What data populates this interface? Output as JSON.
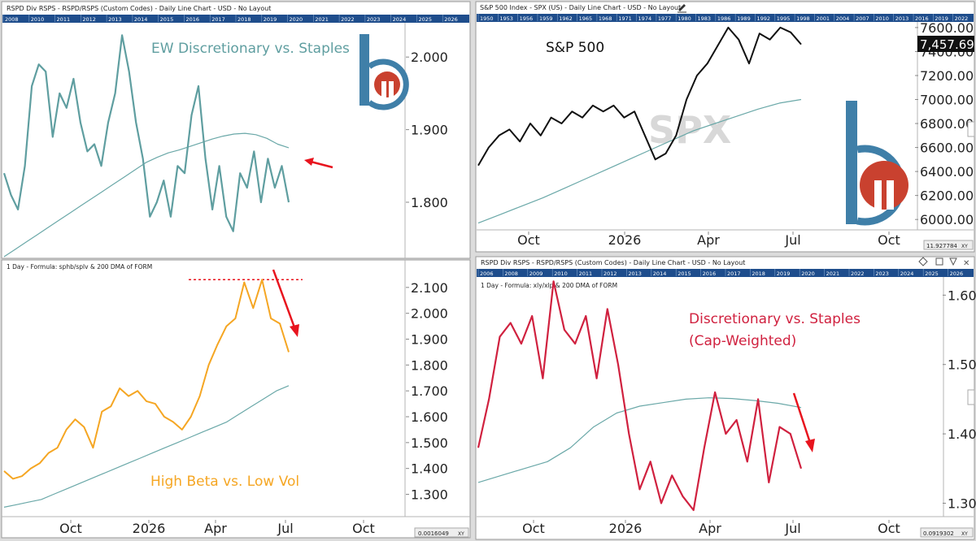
{
  "colors": {
    "teal": "#5f9ea0",
    "ma": "#6aa8a8",
    "orange": "#f5a623",
    "red": "#d0213f",
    "black": "#111111",
    "arrow": "#e8141e",
    "header_band": "#1e4d8c",
    "dotted": "#e8141e",
    "logo_blue": "#3f7fa8",
    "logo_red": "#c9412f"
  },
  "panels": {
    "top_left": {
      "header": "RSPD Div RSPS -  RSPD/RSPS (Custom Codes) - Daily Line Chart - USD - No Layout",
      "years": [
        "2008",
        "2010",
        "2011",
        "2012",
        "2013",
        "2014",
        "2015",
        "2016",
        "2017",
        "2018",
        "2019",
        "2020",
        "2021",
        "2022",
        "2023",
        "2024",
        "2025",
        "2026"
      ],
      "title": "EW Discretionary vs. Staples"
    },
    "bottom_left": {
      "subheader": "1 Day - Formula:  sphb/splv & 200 DMA of FORM",
      "title": "High Beta vs. Low Vol",
      "corner_value": "0.0016049",
      "corner_tag": "XY"
    },
    "top_right": {
      "header": "S&P 500 Index - SPX (US) - Daily Line Chart - USD - No Layout",
      "years": [
        "1950",
        "1953",
        "1956",
        "1959",
        "1962",
        "1965",
        "1968",
        "1971",
        "1974",
        "1977",
        "1980",
        "1983",
        "1986",
        "1989",
        "1992",
        "1995",
        "1998",
        "2001",
        "2004",
        "2007",
        "2010",
        "2013",
        "2016",
        "2019",
        "2022"
      ],
      "title": "S&P 500",
      "watermark": "SPX",
      "last_value": "7,457.69",
      "corner_value": "11.927784",
      "corner_tag": "XY"
    },
    "bottom_right": {
      "header": "RSPD Div RSPS -  RSPD/RSPS (Custom Codes) - Daily Line Chart - USD - No Layout",
      "years": [
        "2006",
        "2008",
        "2009",
        "2010",
        "2011",
        "2012",
        "2013",
        "2014",
        "2015",
        "2016",
        "2017",
        "2018",
        "2019",
        "2020",
        "2021",
        "2022",
        "2023",
        "2024",
        "2025",
        "2026"
      ],
      "subheader": "1 Day - Formula:  xly/xlp & 200 DMA of FORM",
      "title_line1": "Discretionary vs. Staples",
      "title_line2": "(Cap-Weighted)",
      "corner_value": "0.0919302",
      "corner_tag": "XY"
    }
  },
  "chart_data": [
    {
      "type": "line",
      "title": "EW Discretionary vs. Staples",
      "x_tick_labels": [
        "Oct",
        "2026",
        "Apr",
        "Jul",
        "Oct"
      ],
      "y_tick_labels": [
        "1.800",
        "1.900",
        "2.000"
      ],
      "ylim": [
        1.725,
        2.045
      ],
      "series": [
        {
          "values": [
            1.84,
            1.81,
            1.79,
            1.85,
            1.96,
            1.99,
            1.98,
            1.89,
            1.95,
            1.93,
            1.97,
            1.91,
            1.87,
            1.88,
            1.85,
            1.91,
            1.95,
            2.03,
            1.98,
            1.91,
            1.86,
            1.78,
            1.8,
            1.83,
            1.78,
            1.85,
            1.84,
            1.92,
            1.96,
            1.86,
            1.79,
            1.85,
            1.78,
            1.76,
            1.84,
            1.82,
            1.87,
            1.8,
            1.86,
            1.82,
            1.85,
            1.8
          ]
        },
        {
          "values": [
            1.725,
            1.735,
            1.745,
            1.755,
            1.765,
            1.775,
            1.785,
            1.795,
            1.805,
            1.815,
            1.825,
            1.835,
            1.845,
            1.855,
            1.862,
            1.868,
            1.872,
            1.877,
            1.882,
            1.887,
            1.891,
            1.894,
            1.895,
            1.893,
            1.888,
            1.88,
            1.875
          ]
        }
      ]
    },
    {
      "type": "line",
      "title": "High Beta vs. Low Vol",
      "x_tick_labels": [
        "Oct",
        "2026",
        "Apr",
        "Jul",
        "Oct"
      ],
      "y_tick_labels": [
        "1.300",
        "1.400",
        "1.500",
        "1.600",
        "1.700",
        "1.800",
        "1.900",
        "2.000",
        "2.100"
      ],
      "ylim": [
        1.22,
        2.2
      ],
      "reference_level": 2.13,
      "series": [
        {
          "values": [
            1.39,
            1.36,
            1.37,
            1.4,
            1.42,
            1.46,
            1.48,
            1.55,
            1.59,
            1.56,
            1.48,
            1.62,
            1.64,
            1.71,
            1.68,
            1.7,
            1.66,
            1.65,
            1.6,
            1.58,
            1.55,
            1.6,
            1.68,
            1.8,
            1.88,
            1.95,
            1.98,
            2.12,
            2.02,
            2.13,
            1.98,
            1.96,
            1.85
          ]
        },
        {
          "values": [
            1.25,
            1.26,
            1.27,
            1.28,
            1.3,
            1.32,
            1.34,
            1.36,
            1.38,
            1.4,
            1.42,
            1.44,
            1.46,
            1.48,
            1.5,
            1.52,
            1.54,
            1.56,
            1.58,
            1.61,
            1.64,
            1.67,
            1.7,
            1.72
          ]
        }
      ]
    },
    {
      "type": "line",
      "title": "S&P 500",
      "x_tick_labels": [
        "Oct",
        "2026",
        "Apr",
        "Jul",
        "Oct"
      ],
      "y_tick_labels": [
        "6000.00",
        "6200.00",
        "6400.00",
        "6600.00",
        "6800.00",
        "7000.00",
        "7200.00",
        "7400.00",
        "7600.00"
      ],
      "ylim": [
        5920,
        7640
      ],
      "last_value": 7457.69,
      "series": [
        {
          "values": [
            6450,
            6600,
            6700,
            6750,
            6650,
            6800,
            6700,
            6850,
            6800,
            6900,
            6850,
            6950,
            6900,
            6950,
            6850,
            6900,
            6700,
            6500,
            6550,
            6700,
            7000,
            7200,
            7300,
            7450,
            7600,
            7500,
            7300,
            7550,
            7500,
            7600,
            7560,
            7460
          ]
        },
        {
          "values": [
            5970,
            6040,
            6110,
            6180,
            6260,
            6340,
            6420,
            6500,
            6580,
            6660,
            6740,
            6800,
            6860,
            6920,
            6970,
            7000
          ]
        }
      ]
    },
    {
      "type": "line",
      "title": "Discretionary vs. Staples (Cap-Weighted)",
      "x_tick_labels": [
        "Oct",
        "2026",
        "Apr",
        "Jul",
        "Oct"
      ],
      "y_tick_labels": [
        "1.30",
        "1.40",
        "1.50",
        "1.60"
      ],
      "ylim": [
        1.283,
        1.625
      ],
      "series": [
        {
          "values": [
            1.38,
            1.45,
            1.54,
            1.56,
            1.53,
            1.57,
            1.48,
            1.62,
            1.55,
            1.53,
            1.57,
            1.48,
            1.58,
            1.5,
            1.4,
            1.32,
            1.36,
            1.3,
            1.34,
            1.31,
            1.29,
            1.38,
            1.46,
            1.4,
            1.42,
            1.36,
            1.45,
            1.33,
            1.41,
            1.4,
            1.35
          ]
        },
        {
          "values": [
            1.33,
            1.34,
            1.35,
            1.36,
            1.38,
            1.41,
            1.43,
            1.44,
            1.445,
            1.45,
            1.452,
            1.451,
            1.448,
            1.444,
            1.438
          ]
        }
      ]
    }
  ]
}
